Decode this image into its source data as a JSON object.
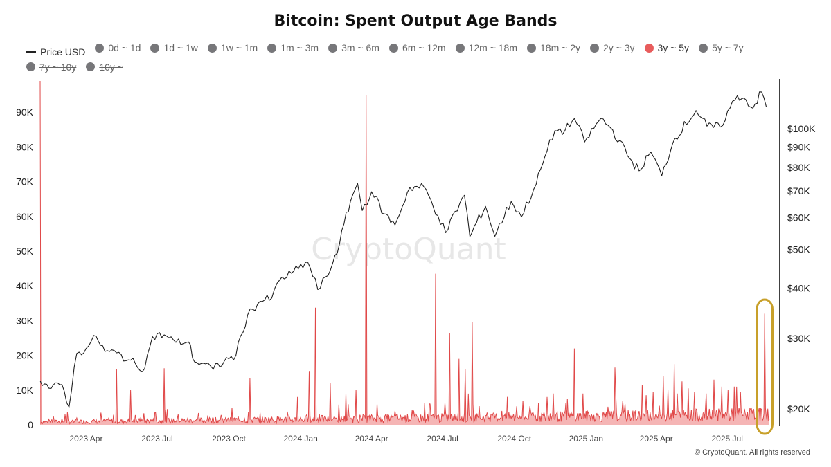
{
  "chart_data": {
    "type": "line",
    "title": "Bitcoin: Spent Output Age Bands",
    "legend": [
      {
        "label": "Price USD",
        "marker": "line",
        "active": true,
        "color": "#222222"
      },
      {
        "label": "0d ~ 1d",
        "marker": "dot",
        "active": false,
        "color": "#77777a"
      },
      {
        "label": "1d ~ 1w",
        "marker": "dot",
        "active": false,
        "color": "#77777a"
      },
      {
        "label": "1w ~ 1m",
        "marker": "dot",
        "active": false,
        "color": "#77777a"
      },
      {
        "label": "1m ~ 3m",
        "marker": "dot",
        "active": false,
        "color": "#77777a"
      },
      {
        "label": "3m ~ 6m",
        "marker": "dot",
        "active": false,
        "color": "#77777a"
      },
      {
        "label": "6m ~ 12m",
        "marker": "dot",
        "active": false,
        "color": "#77777a"
      },
      {
        "label": "12m ~ 18m",
        "marker": "dot",
        "active": false,
        "color": "#77777a"
      },
      {
        "label": "18m ~ 2y",
        "marker": "dot",
        "active": false,
        "color": "#77777a"
      },
      {
        "label": "2y ~ 3y",
        "marker": "dot",
        "active": false,
        "color": "#77777a"
      },
      {
        "label": "3y ~ 5y",
        "marker": "dot",
        "active": true,
        "color": "#e85c5c"
      },
      {
        "label": "5y ~ 7y",
        "marker": "dot",
        "active": false,
        "color": "#77777a"
      },
      {
        "label": "7y ~ 10y",
        "marker": "dot",
        "active": false,
        "color": "#77777a"
      },
      {
        "label": "10y ~",
        "marker": "dot",
        "active": false,
        "color": "#77777a"
      }
    ],
    "x_ticks": [
      "2023 Apr",
      "2023 Jul",
      "2023 Oct",
      "2024 Jan",
      "2024 Apr",
      "2024 Jul",
      "2024 Oct",
      "2025 Jan",
      "2025 Apr",
      "2025 Jul"
    ],
    "x_range": [
      "2023-02",
      "2025-09"
    ],
    "left_axis": {
      "ticks": [
        "0",
        "10K",
        "20K",
        "30K",
        "40K",
        "50K",
        "60K",
        "70K",
        "80K",
        "90K"
      ],
      "ylim": [
        0,
        100000
      ]
    },
    "right_axis": {
      "scale": "log",
      "ticks": [
        "$20K",
        "$30K",
        "$40K",
        "$50K",
        "$60K",
        "$70K",
        "$80K",
        "$90K",
        "$100K"
      ],
      "values": [
        20000,
        30000,
        40000,
        50000,
        60000,
        70000,
        80000,
        90000,
        100000
      ]
    },
    "series": [
      {
        "name": "Price USD",
        "axis": "right",
        "color": "#222222",
        "points": [
          [
            "2023-02-01",
            23500
          ],
          [
            "2023-02-15",
            22500
          ],
          [
            "2023-03-01",
            23000
          ],
          [
            "2023-03-10",
            20200
          ],
          [
            "2023-03-20",
            27500
          ],
          [
            "2023-04-01",
            28300
          ],
          [
            "2023-04-14",
            30300
          ],
          [
            "2023-04-25",
            27800
          ],
          [
            "2023-05-10",
            27600
          ],
          [
            "2023-05-25",
            26500
          ],
          [
            "2023-06-15",
            25200
          ],
          [
            "2023-06-25",
            30300
          ],
          [
            "2023-07-10",
            30600
          ],
          [
            "2023-07-25",
            29300
          ],
          [
            "2023-08-10",
            29400
          ],
          [
            "2023-08-18",
            26200
          ],
          [
            "2023-09-01",
            25900
          ],
          [
            "2023-09-11",
            25100
          ],
          [
            "2023-09-25",
            26300
          ],
          [
            "2023-10-10",
            27200
          ],
          [
            "2023-10-25",
            34300
          ],
          [
            "2023-11-10",
            37100
          ],
          [
            "2023-11-25",
            37800
          ],
          [
            "2023-12-05",
            41900
          ],
          [
            "2023-12-20",
            43600
          ],
          [
            "2024-01-10",
            46500
          ],
          [
            "2024-01-23",
            39700
          ],
          [
            "2024-02-05",
            43000
          ],
          [
            "2024-02-20",
            51800
          ],
          [
            "2024-03-05",
            66000
          ],
          [
            "2024-03-14",
            73000
          ],
          [
            "2024-03-20",
            62500
          ],
          [
            "2024-04-01",
            69600
          ],
          [
            "2024-04-17",
            61300
          ],
          [
            "2024-05-01",
            57500
          ],
          [
            "2024-05-20",
            71300
          ],
          [
            "2024-06-07",
            71600
          ],
          [
            "2024-06-25",
            60700
          ],
          [
            "2024-07-05",
            55000
          ],
          [
            "2024-07-29",
            68200
          ],
          [
            "2024-08-05",
            53800
          ],
          [
            "2024-08-25",
            64000
          ],
          [
            "2024-09-06",
            53900
          ],
          [
            "2024-09-27",
            65800
          ],
          [
            "2024-10-10",
            60300
          ],
          [
            "2024-10-29",
            72700
          ],
          [
            "2024-11-12",
            88000
          ],
          [
            "2024-11-22",
            98900
          ],
          [
            "2024-12-05",
            99000
          ],
          [
            "2024-12-17",
            106000
          ],
          [
            "2024-12-30",
            92600
          ],
          [
            "2025-01-20",
            106100
          ],
          [
            "2025-02-01",
            100700
          ],
          [
            "2025-02-26",
            84300
          ],
          [
            "2025-03-10",
            78500
          ],
          [
            "2025-03-25",
            87500
          ],
          [
            "2025-04-08",
            76300
          ],
          [
            "2025-04-25",
            94700
          ],
          [
            "2025-05-22",
            111000
          ],
          [
            "2025-06-05",
            101500
          ],
          [
            "2025-06-22",
            100900
          ],
          [
            "2025-07-14",
            121000
          ],
          [
            "2025-07-25",
            118000
          ],
          [
            "2025-08-03",
            112500
          ],
          [
            "2025-08-14",
            123500
          ],
          [
            "2025-08-20",
            113500
          ]
        ]
      },
      {
        "name": "3y ~ 5y",
        "axis": "left",
        "color": "#e85c5c",
        "baseline_level": 1500,
        "spikes": [
          [
            "2023-02-01",
            99000
          ],
          [
            "2023-02-18",
            2500
          ],
          [
            "2023-03-05",
            3000
          ],
          [
            "2023-03-20",
            2000
          ],
          [
            "2023-04-20",
            3500
          ],
          [
            "2023-05-10",
            16000
          ],
          [
            "2023-05-28",
            10000
          ],
          [
            "2023-06-10",
            2200
          ],
          [
            "2023-06-28",
            3500
          ],
          [
            "2023-07-10",
            16300
          ],
          [
            "2023-07-28",
            3000
          ],
          [
            "2023-09-10",
            2000
          ],
          [
            "2023-10-28",
            13500
          ],
          [
            "2023-12-28",
            8000
          ],
          [
            "2024-01-12",
            15500
          ],
          [
            "2024-01-20",
            33700
          ],
          [
            "2024-02-08",
            12000
          ],
          [
            "2024-02-28",
            9000
          ],
          [
            "2024-03-12",
            10000
          ],
          [
            "2024-03-25",
            95000
          ],
          [
            "2024-04-08",
            6000
          ],
          [
            "2024-05-01",
            4000
          ],
          [
            "2024-06-15",
            6000
          ],
          [
            "2024-06-22",
            43500
          ],
          [
            "2024-07-10",
            26500
          ],
          [
            "2024-07-22",
            19000
          ],
          [
            "2024-07-30",
            16000
          ],
          [
            "2024-08-08",
            29500
          ],
          [
            "2024-09-15",
            4000
          ],
          [
            "2024-10-25",
            3500
          ],
          [
            "2024-11-12",
            8000
          ],
          [
            "2024-11-20",
            9000
          ],
          [
            "2024-12-08",
            7500
          ],
          [
            "2024-12-17",
            22000
          ],
          [
            "2024-12-28",
            9000
          ],
          [
            "2025-02-07",
            16500
          ],
          [
            "2025-02-20",
            6000
          ],
          [
            "2025-03-14",
            11500
          ],
          [
            "2025-03-28",
            9500
          ],
          [
            "2025-04-10",
            14000
          ],
          [
            "2025-04-16",
            10000
          ],
          [
            "2025-04-24",
            17500
          ],
          [
            "2025-04-28",
            9000
          ],
          [
            "2025-05-04",
            12500
          ],
          [
            "2025-05-12",
            10500
          ],
          [
            "2025-05-20",
            9500
          ],
          [
            "2025-06-04",
            9000
          ],
          [
            "2025-06-14",
            13000
          ],
          [
            "2025-06-24",
            11000
          ],
          [
            "2025-07-02",
            10000
          ],
          [
            "2025-07-10",
            11000
          ],
          [
            "2025-07-18",
            9500
          ],
          [
            "2025-08-10",
            4000
          ],
          [
            "2025-08-18",
            32000
          ]
        ]
      }
    ],
    "watermark": "CryptoQuant",
    "highlight": {
      "start": "2025-08-08",
      "end": "2025-08-28",
      "color": "#c8a02a"
    },
    "grid": false
  },
  "footer": {
    "copyright": "© CryptoQuant. All rights reserved"
  }
}
